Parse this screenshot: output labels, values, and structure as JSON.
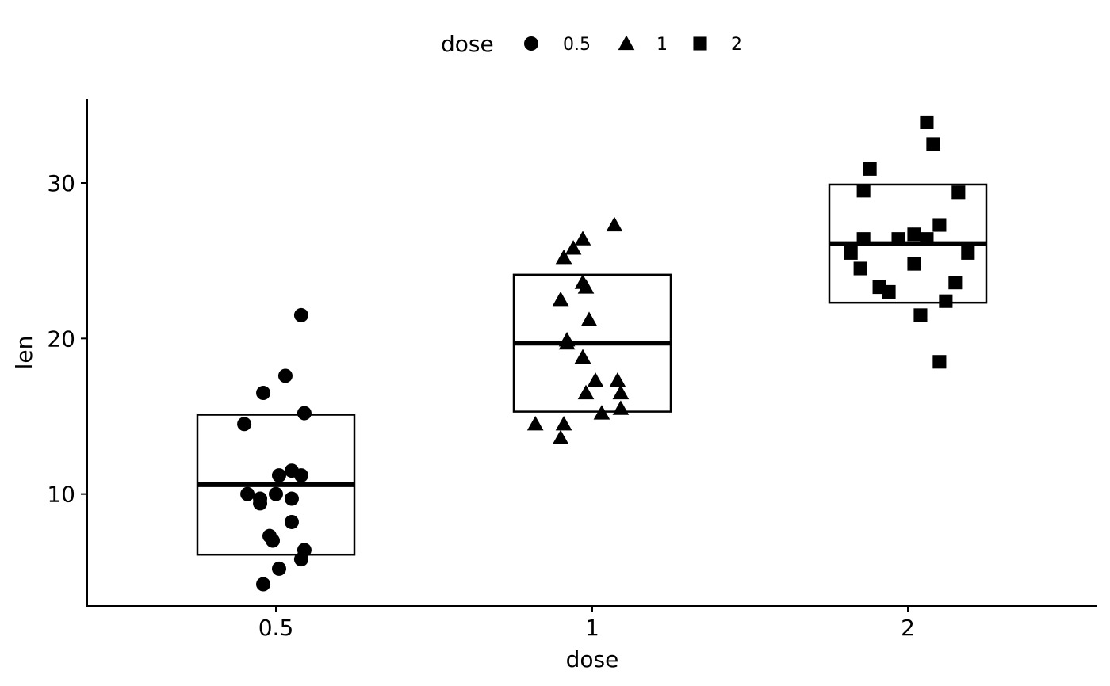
{
  "chart_data": {
    "type": "box+jitter",
    "legend": {
      "title": "dose",
      "position": "top",
      "entries": [
        {
          "label": "0.5",
          "shape": "circle"
        },
        {
          "label": "1",
          "shape": "triangle"
        },
        {
          "label": "2",
          "shape": "square"
        }
      ]
    },
    "xlabel": "dose",
    "ylabel": "len",
    "categories": [
      "0.5",
      "1",
      "2"
    ],
    "ylim": [
      2.8,
      35.4
    ],
    "yticks": [
      10,
      20,
      30
    ],
    "boxes": [
      {
        "category": "0.5",
        "lower": 6.1,
        "median": 10.6,
        "upper": 15.1
      },
      {
        "category": "1",
        "lower": 15.3,
        "median": 19.7,
        "upper": 24.1
      },
      {
        "category": "2",
        "lower": 22.3,
        "median": 26.1,
        "upper": 29.9
      }
    ],
    "series": [
      {
        "name": "0.5",
        "shape": "circle",
        "points": [
          [
            0.4,
            14.5
          ],
          [
            0.46,
            16.5
          ],
          [
            0.53,
            17.6
          ],
          [
            0.58,
            21.5
          ],
          [
            0.59,
            15.2
          ],
          [
            0.41,
            10.0
          ],
          [
            0.45,
            9.7
          ],
          [
            0.45,
            9.4
          ],
          [
            0.5,
            10.0
          ],
          [
            0.51,
            11.2
          ],
          [
            0.55,
            11.5
          ],
          [
            0.58,
            11.2
          ],
          [
            0.55,
            9.7
          ],
          [
            0.55,
            8.2
          ],
          [
            0.48,
            7.3
          ],
          [
            0.49,
            7.0
          ],
          [
            0.59,
            6.4
          ],
          [
            0.58,
            5.8
          ],
          [
            0.51,
            5.2
          ],
          [
            0.46,
            4.2
          ]
        ]
      },
      {
        "name": "1",
        "shape": "triangle",
        "points": [
          [
            1.07,
            27.3
          ],
          [
            0.97,
            26.4
          ],
          [
            0.94,
            25.8
          ],
          [
            0.91,
            25.2
          ],
          [
            0.97,
            23.6
          ],
          [
            0.98,
            23.3
          ],
          [
            0.9,
            22.5
          ],
          [
            0.99,
            21.2
          ],
          [
            0.92,
            19.9
          ],
          [
            0.92,
            19.7
          ],
          [
            0.97,
            18.8
          ],
          [
            1.01,
            17.3
          ],
          [
            1.08,
            17.3
          ],
          [
            0.98,
            16.5
          ],
          [
            1.09,
            16.5
          ],
          [
            1.09,
            15.5
          ],
          [
            1.03,
            15.2
          ],
          [
            0.82,
            14.5
          ],
          [
            0.91,
            14.5
          ],
          [
            0.9,
            13.6
          ]
        ]
      },
      {
        "name": "2",
        "shape": "square",
        "points": [
          [
            2.06,
            33.9
          ],
          [
            2.08,
            32.5
          ],
          [
            1.88,
            30.9
          ],
          [
            1.86,
            29.5
          ],
          [
            2.16,
            29.4
          ],
          [
            2.1,
            27.3
          ],
          [
            2.02,
            26.7
          ],
          [
            1.86,
            26.4
          ],
          [
            1.97,
            26.4
          ],
          [
            2.06,
            26.4
          ],
          [
            1.82,
            25.5
          ],
          [
            2.19,
            25.5
          ],
          [
            1.85,
            24.5
          ],
          [
            2.02,
            24.8
          ],
          [
            2.15,
            23.6
          ],
          [
            1.91,
            23.3
          ],
          [
            1.94,
            23.0
          ],
          [
            2.12,
            22.4
          ],
          [
            2.04,
            21.5
          ],
          [
            2.1,
            18.5
          ]
        ]
      }
    ]
  }
}
